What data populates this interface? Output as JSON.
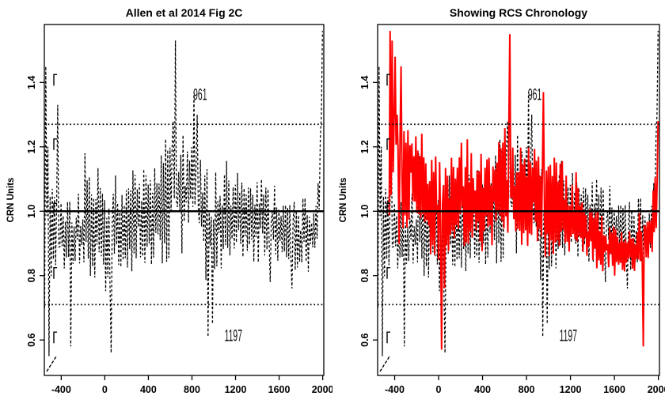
{
  "figure": {
    "background": "#ffffff",
    "accent_color": "#ff0000",
    "line_color": "#000000"
  },
  "chart_data": [
    {
      "type": "line",
      "title": "Allen et al 2014 Fig 2C",
      "xlabel": "",
      "ylabel": "CRN Units",
      "xlim": [
        -555,
        2010
      ],
      "ylim": [
        0.49,
        1.58
      ],
      "x_ticks": [
        -400,
        0,
        400,
        800,
        1200,
        1600,
        2000
      ],
      "y_ticks": [
        0.6,
        0.8,
        1.0,
        1.2,
        1.4
      ],
      "grid": false,
      "legend": "none",
      "reference_lines": [
        {
          "y": 1.0,
          "style": "solid",
          "width": 2.6,
          "color": "#000000",
          "name": "mean-reference-line"
        },
        {
          "y": 1.27,
          "style": "dotted",
          "width": 1.7,
          "color": "#000000",
          "name": "upper-dotted-line"
        },
        {
          "y": 0.71,
          "style": "dotted",
          "width": 1.7,
          "color": "#000000",
          "name": "lower-dotted-line"
        }
      ],
      "annotations": [
        {
          "text": "961",
          "x": 875,
          "y": 1.345
        },
        {
          "text": "1197",
          "x": 1180,
          "y": 0.597
        }
      ],
      "series": [
        {
          "name": "allen-2014-chronology",
          "color": "#000000",
          "line_style": "dashed",
          "line_width": 1.25,
          "x_start": -552,
          "x_end": 2006,
          "x_step": 10,
          "seed": 1337,
          "envelope": [
            [
              -552,
              1.0,
              0.35
            ],
            [
              -535,
              1.05,
              0.28
            ],
            [
              -500,
              0.95,
              0.22
            ],
            [
              -450,
              0.94,
              0.18
            ],
            [
              -400,
              0.93,
              0.17
            ],
            [
              -350,
              0.94,
              0.16
            ],
            [
              -300,
              0.92,
              0.17
            ],
            [
              -250,
              0.95,
              0.15
            ],
            [
              -200,
              0.93,
              0.14
            ],
            [
              -150,
              0.94,
              0.15
            ],
            [
              -100,
              0.95,
              0.14
            ],
            [
              -50,
              0.96,
              0.15
            ],
            [
              0,
              0.94,
              0.16
            ],
            [
              50,
              0.91,
              0.17
            ],
            [
              100,
              0.95,
              0.15
            ],
            [
              200,
              0.97,
              0.14
            ],
            [
              300,
              0.96,
              0.14
            ],
            [
              400,
              1.0,
              0.15
            ],
            [
              500,
              1.01,
              0.16
            ],
            [
              600,
              1.05,
              0.18
            ],
            [
              650,
              1.08,
              0.2
            ],
            [
              700,
              1.06,
              0.17
            ],
            [
              800,
              1.07,
              0.16
            ],
            [
              880,
              1.02,
              0.16
            ],
            [
              960,
              0.94,
              0.18
            ],
            [
              1020,
              0.94,
              0.16
            ],
            [
              1100,
              1.0,
              0.13
            ],
            [
              1200,
              1.0,
              0.13
            ],
            [
              1300,
              1.0,
              0.12
            ],
            [
              1400,
              0.97,
              0.12
            ],
            [
              1500,
              0.95,
              0.11
            ],
            [
              1600,
              0.95,
              0.1
            ],
            [
              1700,
              0.95,
              0.1
            ],
            [
              1800,
              0.94,
              0.11
            ],
            [
              1900,
              0.94,
              0.1
            ],
            [
              1950,
              0.98,
              0.11
            ],
            [
              1985,
              1.08,
              0.14
            ],
            [
              2006,
              1.35,
              0.18
            ]
          ],
          "events": [
            [
              -548,
              0.7
            ],
            [
              -540,
              1.45
            ],
            [
              -515,
              0.55
            ],
            [
              -430,
              1.33
            ],
            [
              -310,
              0.58
            ],
            [
              -180,
              1.18
            ],
            [
              55,
              0.56
            ],
            [
              625,
              1.28
            ],
            [
              645,
              1.53
            ],
            [
              820,
              1.37
            ],
            [
              850,
              1.3
            ],
            [
              945,
              0.61
            ],
            [
              985,
              0.65
            ],
            [
              1520,
              0.78
            ],
            [
              1720,
              0.76
            ],
            [
              1992,
              1.3
            ],
            [
              2002,
              1.56
            ]
          ]
        }
      ]
    },
    {
      "type": "line",
      "title": "Showing RCS Chronology",
      "xlabel": "",
      "ylabel": "CRN Units",
      "xlim": [
        -555,
        2010
      ],
      "ylim": [
        0.49,
        1.58
      ],
      "x_ticks": [
        -400,
        0,
        400,
        800,
        1200,
        1600,
        2000
      ],
      "y_ticks": [
        0.6,
        0.8,
        1.0,
        1.2,
        1.4
      ],
      "grid": false,
      "legend": "none",
      "reference_lines": [
        {
          "y": 1.0,
          "style": "solid",
          "width": 2.6,
          "color": "#000000",
          "name": "mean-reference-line"
        },
        {
          "y": 1.27,
          "style": "dotted",
          "width": 1.7,
          "color": "#000000",
          "name": "upper-dotted-line"
        },
        {
          "y": 0.71,
          "style": "dotted",
          "width": 1.7,
          "color": "#000000",
          "name": "lower-dotted-line"
        }
      ],
      "annotations": [
        {
          "text": "961",
          "x": 875,
          "y": 1.345
        },
        {
          "text": "1197",
          "x": 1180,
          "y": 0.597
        }
      ],
      "series": [
        {
          "name": "allen-2014-chronology",
          "color": "#000000",
          "line_style": "dashed",
          "line_width": 1.25,
          "x_start": -552,
          "x_end": 2006,
          "x_step": 10,
          "seed": 1337,
          "envelope": [
            [
              -552,
              1.0,
              0.35
            ],
            [
              -535,
              1.05,
              0.28
            ],
            [
              -500,
              0.95,
              0.22
            ],
            [
              -450,
              0.94,
              0.18
            ],
            [
              -400,
              0.93,
              0.17
            ],
            [
              -350,
              0.94,
              0.16
            ],
            [
              -300,
              0.92,
              0.17
            ],
            [
              -250,
              0.95,
              0.15
            ],
            [
              -200,
              0.93,
              0.14
            ],
            [
              -150,
              0.94,
              0.15
            ],
            [
              -100,
              0.95,
              0.14
            ],
            [
              -50,
              0.96,
              0.15
            ],
            [
              0,
              0.94,
              0.16
            ],
            [
              50,
              0.91,
              0.17
            ],
            [
              100,
              0.95,
              0.15
            ],
            [
              200,
              0.97,
              0.14
            ],
            [
              300,
              0.96,
              0.14
            ],
            [
              400,
              1.0,
              0.15
            ],
            [
              500,
              1.01,
              0.16
            ],
            [
              600,
              1.05,
              0.18
            ],
            [
              650,
              1.08,
              0.2
            ],
            [
              700,
              1.06,
              0.17
            ],
            [
              800,
              1.07,
              0.16
            ],
            [
              880,
              1.02,
              0.16
            ],
            [
              960,
              0.94,
              0.18
            ],
            [
              1020,
              0.94,
              0.16
            ],
            [
              1100,
              1.0,
              0.13
            ],
            [
              1200,
              1.0,
              0.13
            ],
            [
              1300,
              1.0,
              0.12
            ],
            [
              1400,
              0.97,
              0.12
            ],
            [
              1500,
              0.95,
              0.11
            ],
            [
              1600,
              0.95,
              0.1
            ],
            [
              1700,
              0.95,
              0.1
            ],
            [
              1800,
              0.94,
              0.11
            ],
            [
              1900,
              0.94,
              0.1
            ],
            [
              1950,
              0.98,
              0.11
            ],
            [
              1985,
              1.08,
              0.14
            ],
            [
              2006,
              1.35,
              0.18
            ]
          ],
          "events": [
            [
              -548,
              0.7
            ],
            [
              -540,
              1.45
            ],
            [
              -515,
              0.55
            ],
            [
              -430,
              1.33
            ],
            [
              -310,
              0.58
            ],
            [
              -180,
              1.18
            ],
            [
              55,
              0.56
            ],
            [
              625,
              1.28
            ],
            [
              645,
              1.53
            ],
            [
              820,
              1.37
            ],
            [
              850,
              1.3
            ],
            [
              945,
              0.61
            ],
            [
              985,
              0.65
            ],
            [
              1520,
              0.78
            ],
            [
              1720,
              0.76
            ],
            [
              1992,
              1.3
            ],
            [
              2002,
              1.56
            ]
          ]
        },
        {
          "name": "rcs-chronology",
          "color": "#ff0000",
          "line_style": "solid",
          "line_width": 2.0,
          "x_start": -450,
          "x_end": 2003,
          "x_step": 9,
          "seed": 77,
          "envelope": [
            [
              -450,
              1.2,
              0.24
            ],
            [
              -420,
              1.28,
              0.22
            ],
            [
              -390,
              1.22,
              0.2
            ],
            [
              -350,
              1.15,
              0.2
            ],
            [
              -300,
              1.1,
              0.18
            ],
            [
              -250,
              1.12,
              0.16
            ],
            [
              -200,
              1.08,
              0.16
            ],
            [
              -150,
              1.1,
              0.15
            ],
            [
              -100,
              1.05,
              0.16
            ],
            [
              -50,
              1.02,
              0.16
            ],
            [
              0,
              1.0,
              0.17
            ],
            [
              50,
              0.96,
              0.18
            ],
            [
              100,
              1.0,
              0.15
            ],
            [
              200,
              1.05,
              0.14
            ],
            [
              300,
              1.02,
              0.14
            ],
            [
              400,
              1.05,
              0.14
            ],
            [
              500,
              1.04,
              0.13
            ],
            [
              600,
              1.08,
              0.15
            ],
            [
              650,
              1.1,
              0.18
            ],
            [
              700,
              1.05,
              0.15
            ],
            [
              800,
              1.05,
              0.14
            ],
            [
              900,
              1.08,
              0.15
            ],
            [
              960,
              1.05,
              0.15
            ],
            [
              1020,
              1.0,
              0.14
            ],
            [
              1100,
              1.0,
              0.13
            ],
            [
              1200,
              1.0,
              0.12
            ],
            [
              1300,
              0.95,
              0.1
            ],
            [
              1400,
              0.92,
              0.09
            ],
            [
              1500,
              0.9,
              0.08
            ],
            [
              1600,
              0.88,
              0.07
            ],
            [
              1700,
              0.86,
              0.06
            ],
            [
              1800,
              0.88,
              0.07
            ],
            [
              1850,
              0.92,
              0.08
            ],
            [
              1900,
              0.9,
              0.1
            ],
            [
              1950,
              0.95,
              0.1
            ],
            [
              2003,
              1.12,
              0.12
            ]
          ],
          "events": [
            [
              -443,
              1.56
            ],
            [
              -436,
              1.05
            ],
            [
              -424,
              1.53
            ],
            [
              -412,
              1.12
            ],
            [
              -398,
              1.48
            ],
            [
              -380,
              1.3
            ],
            [
              -345,
              1.45
            ],
            [
              30,
              0.57
            ],
            [
              645,
              1.55
            ],
            [
              950,
              1.37
            ],
            [
              1860,
              0.58
            ],
            [
              2000,
              1.28
            ]
          ]
        }
      ]
    }
  ]
}
